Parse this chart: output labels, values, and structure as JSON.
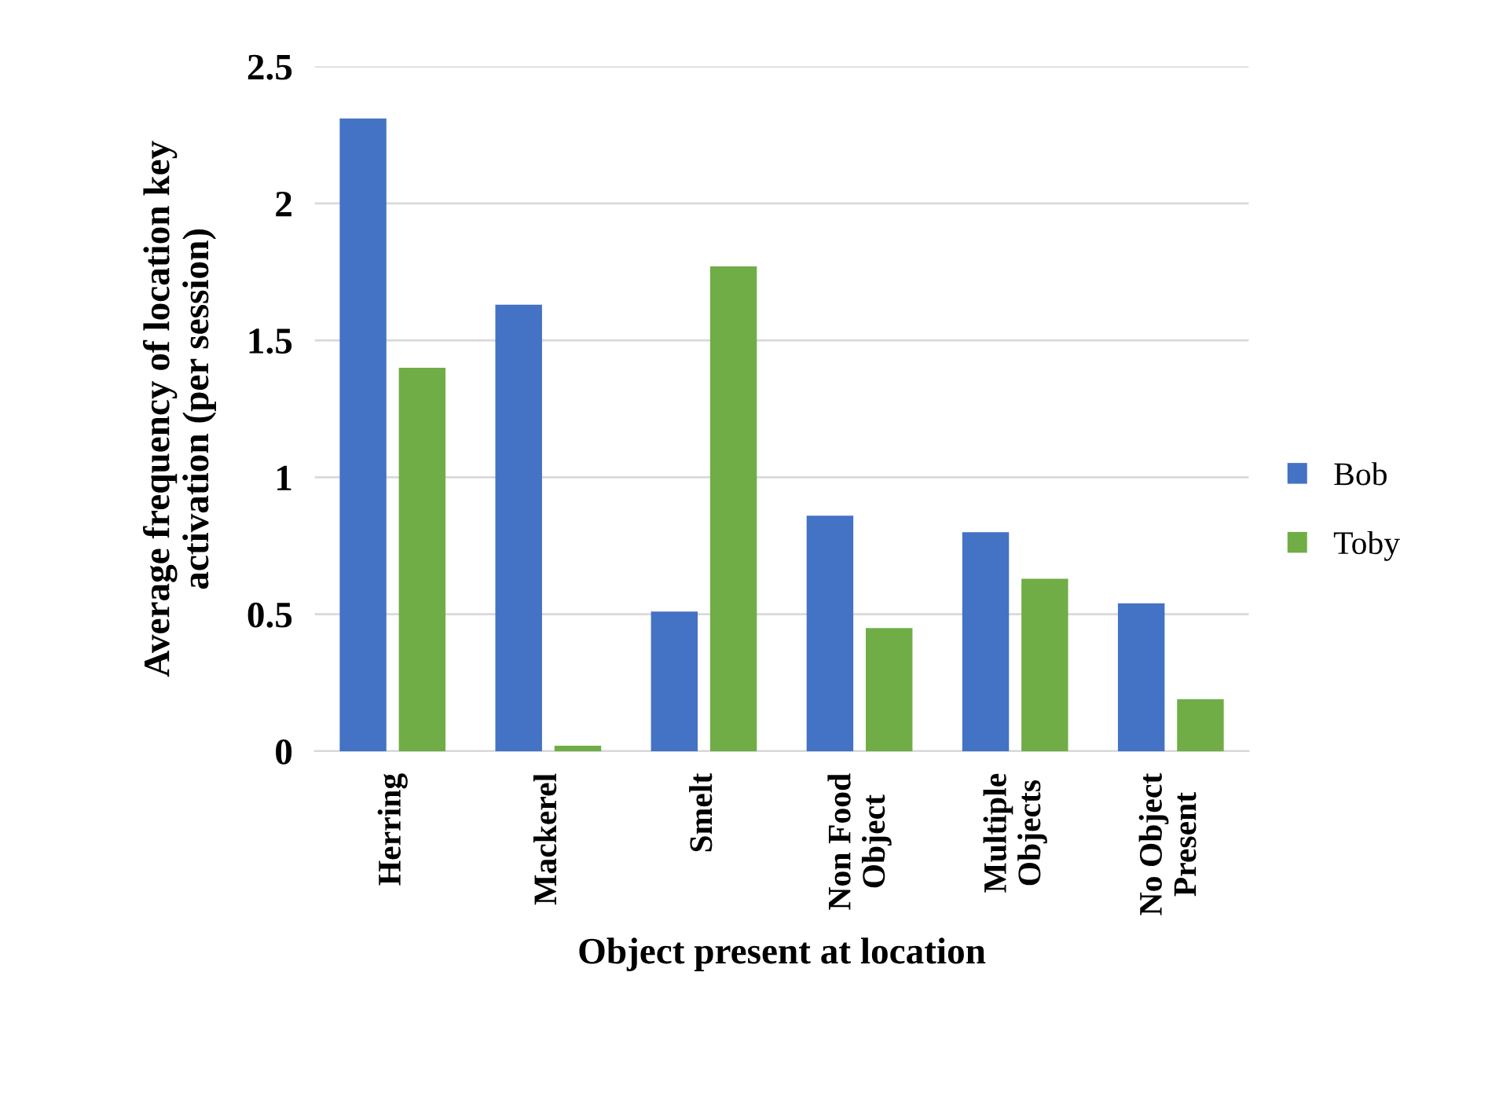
{
  "chart_data": {
    "type": "bar",
    "xlabel": "Object present at location",
    "ylabel": "Average frequency of location key\nactivation (per session)",
    "categories": [
      "Herring",
      "Mackerel",
      "Smelt",
      "Non Food\nObject",
      "Multiple\nObjects",
      "No Object\nPresent"
    ],
    "series": [
      {
        "name": "Bob",
        "color": "#4472c4",
        "values": [
          2.31,
          1.63,
          0.51,
          0.86,
          0.8,
          0.54
        ]
      },
      {
        "name": "Toby",
        "color": "#70ad47",
        "values": [
          1.4,
          0.02,
          1.77,
          0.45,
          0.63,
          0.19
        ]
      }
    ],
    "ylim": [
      0,
      2.5
    ],
    "yticks": [
      0,
      0.5,
      1,
      1.5,
      2,
      2.5
    ],
    "grid": "y",
    "legend": "right"
  }
}
